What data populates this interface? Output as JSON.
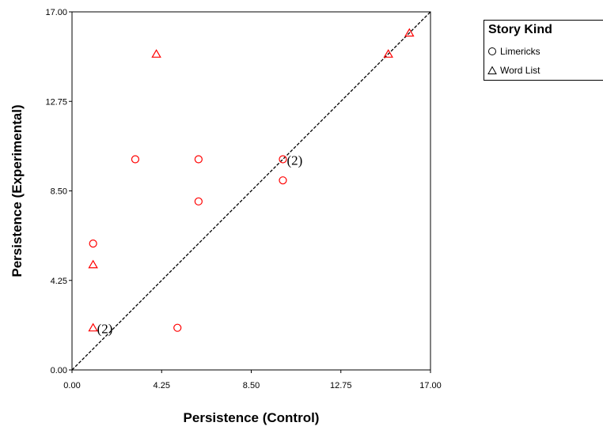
{
  "chart_data": {
    "type": "scatter",
    "title": "",
    "xlabel": "Persistence (Control)",
    "ylabel": "Persistence (Experimental)",
    "xlim": [
      0,
      17
    ],
    "ylim": [
      0,
      17
    ],
    "xticks": [
      "0.00",
      "4.25",
      "8.50",
      "12.75",
      "17.00"
    ],
    "yticks": [
      "0.00",
      "4.25",
      "8.50",
      "12.75",
      "17.00"
    ],
    "grid": false,
    "legend": {
      "title": "Story Kind",
      "position": "top-right",
      "entries": [
        {
          "name": "Limericks",
          "marker": "circle"
        },
        {
          "name": "Word List",
          "marker": "triangle"
        }
      ]
    },
    "reference_line": {
      "style": "dashed",
      "from": [
        0,
        0
      ],
      "to": [
        17,
        17
      ]
    },
    "marker_color": "#ff0000",
    "series": [
      {
        "name": "Limericks",
        "marker": "circle",
        "points": [
          {
            "x": 1,
            "y": 6
          },
          {
            "x": 3,
            "y": 10
          },
          {
            "x": 5,
            "y": 2
          },
          {
            "x": 6,
            "y": 10
          },
          {
            "x": 6,
            "y": 8
          },
          {
            "x": 10,
            "y": 10
          },
          {
            "x": 10,
            "y": 9
          }
        ]
      },
      {
        "name": "Word List",
        "marker": "triangle",
        "points": [
          {
            "x": 1,
            "y": 5
          },
          {
            "x": 1,
            "y": 2
          },
          {
            "x": 4,
            "y": 15
          },
          {
            "x": 15,
            "y": 15
          },
          {
            "x": 16,
            "y": 16
          }
        ]
      }
    ],
    "annotations": [
      {
        "text": "(2)",
        "x": 10,
        "y": 10
      },
      {
        "text": "(2)",
        "x": 1,
        "y": 2
      }
    ]
  }
}
